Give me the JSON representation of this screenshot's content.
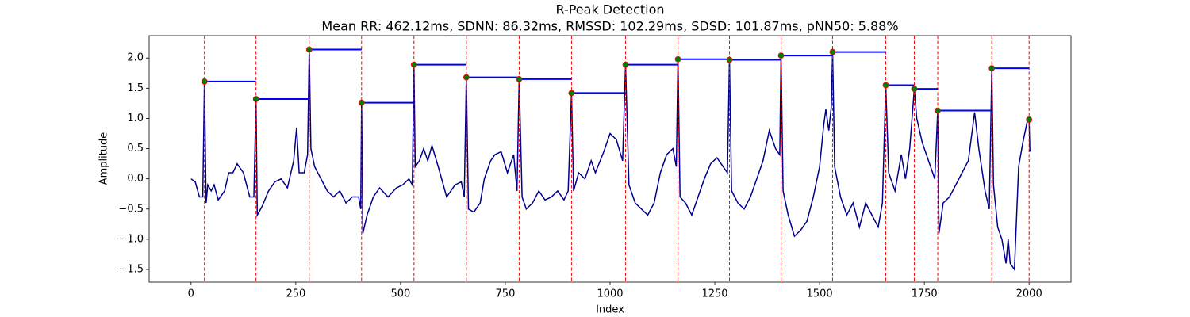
{
  "chart_data": {
    "type": "line",
    "title": "R-Peak Detection",
    "subtitle": "Mean RR: 462.12ms, SDNN: 86.32ms, RMSSD: 102.29ms, SDSD: 101.87ms, pNN50: 5.88%",
    "x_label": "Index",
    "y_label": "Amplitude",
    "xlim": [
      -100,
      2100
    ],
    "ylim": [
      -1.71,
      2.37
    ],
    "xticks": [
      0,
      250,
      500,
      750,
      1000,
      1250,
      1500,
      1750,
      2000
    ],
    "yticks": [
      {
        "value": -1.5,
        "label": "−1.5"
      },
      {
        "value": -1.0,
        "label": "−1.0"
      },
      {
        "value": -0.5,
        "label": "−0.5"
      },
      {
        "value": 0.0,
        "label": "0.0"
      },
      0.5,
      {
        "value": 1.0,
        "label": "1.0"
      },
      1.5,
      {
        "value": 2.0,
        "label": "2.0"
      }
    ],
    "signal_color": "#00008b",
    "peak_color": "#008000",
    "marker_edge_color": "#ff0000",
    "peak_line_color": "#ff0000",
    "rr_line_color": "#0000ff",
    "signal_x": [
      0,
      10,
      20,
      28,
      32,
      36,
      40,
      48,
      55,
      65,
      80,
      90,
      100,
      110,
      125,
      140,
      150,
      155,
      158,
      170,
      185,
      200,
      215,
      230,
      245,
      252,
      258,
      270,
      278,
      282,
      286,
      295,
      310,
      325,
      340,
      355,
      370,
      385,
      400,
      405,
      407,
      410,
      420,
      435,
      450,
      470,
      490,
      505,
      520,
      528,
      532,
      535,
      545,
      555,
      565,
      575,
      590,
      610,
      630,
      645,
      652,
      657,
      662,
      675,
      690,
      700,
      715,
      725,
      740,
      755,
      770,
      778,
      783,
      790,
      800,
      815,
      830,
      845,
      860,
      875,
      890,
      900,
      908,
      913,
      925,
      940,
      955,
      965,
      985,
      1000,
      1015,
      1030,
      1037,
      1045,
      1060,
      1075,
      1090,
      1105,
      1120,
      1135,
      1150,
      1158,
      1162,
      1167,
      1180,
      1195,
      1210,
      1225,
      1240,
      1255,
      1270,
      1280,
      1285,
      1290,
      1305,
      1320,
      1335,
      1350,
      1365,
      1380,
      1395,
      1405,
      1408,
      1413,
      1425,
      1440,
      1455,
      1470,
      1485,
      1500,
      1510,
      1515,
      1522,
      1528,
      1531,
      1536,
      1550,
      1565,
      1580,
      1595,
      1610,
      1625,
      1640,
      1650,
      1658,
      1665,
      1680,
      1695,
      1705,
      1715,
      1726,
      1732,
      1745,
      1760,
      1775,
      1782,
      1785,
      1795,
      1810,
      1825,
      1840,
      1855,
      1870,
      1880,
      1895,
      1905,
      1911,
      1915,
      1925,
      1935,
      1945,
      1950,
      1955,
      1965,
      1975,
      1985,
      1995,
      2000,
      2002
    ],
    "signal_y": [
      0.0,
      -0.05,
      -0.3,
      -0.3,
      1.61,
      -0.4,
      -0.1,
      -0.2,
      -0.1,
      -0.35,
      -0.2,
      0.1,
      0.1,
      0.25,
      0.1,
      -0.3,
      -0.3,
      1.32,
      -0.6,
      -0.45,
      -0.2,
      -0.05,
      0.0,
      -0.15,
      0.3,
      0.85,
      0.1,
      0.1,
      0.4,
      2.14,
      0.5,
      0.2,
      0.0,
      -0.2,
      -0.3,
      -0.2,
      -0.4,
      -0.3,
      -0.3,
      -0.5,
      1.26,
      -0.9,
      -0.6,
      -0.3,
      -0.15,
      -0.3,
      -0.15,
      -0.1,
      0.0,
      -0.1,
      1.89,
      0.2,
      0.3,
      0.5,
      0.3,
      0.55,
      0.2,
      -0.3,
      -0.1,
      -0.05,
      -0.3,
      1.68,
      -0.5,
      -0.55,
      -0.4,
      0.0,
      0.3,
      0.4,
      0.45,
      0.1,
      0.4,
      -0.2,
      1.65,
      -0.3,
      -0.5,
      -0.4,
      -0.2,
      -0.35,
      -0.3,
      -0.2,
      -0.35,
      -0.2,
      1.42,
      -0.2,
      0.1,
      0.0,
      0.3,
      0.1,
      0.45,
      0.75,
      0.65,
      0.3,
      1.89,
      -0.1,
      -0.4,
      -0.5,
      -0.6,
      -0.4,
      0.1,
      0.4,
      0.5,
      0.2,
      1.98,
      -0.3,
      -0.4,
      -0.6,
      -0.3,
      0.0,
      0.25,
      0.35,
      0.2,
      0.1,
      1.97,
      -0.2,
      -0.4,
      -0.5,
      -0.3,
      0.0,
      0.3,
      0.8,
      0.5,
      0.4,
      2.04,
      -0.2,
      -0.6,
      -0.95,
      -0.85,
      -0.7,
      -0.3,
      0.2,
      0.9,
      1.15,
      0.8,
      1.2,
      2.1,
      0.2,
      -0.3,
      -0.6,
      -0.4,
      -0.8,
      -0.4,
      -0.6,
      -0.8,
      -0.4,
      1.55,
      0.1,
      -0.2,
      0.4,
      0.0,
      0.5,
      1.49,
      1.0,
      0.6,
      0.3,
      0.0,
      1.13,
      -0.9,
      -0.4,
      -0.3,
      -0.1,
      0.1,
      0.3,
      1.1,
      0.5,
      -0.2,
      -0.5,
      1.83,
      -0.1,
      -0.8,
      -1.0,
      -1.4,
      -1.0,
      -1.4,
      -1.5,
      0.2,
      0.6,
      0.93,
      0.98,
      0.45
    ],
    "peaks_x": [
      32,
      155,
      282,
      407,
      532,
      657,
      783,
      908,
      1037,
      1162,
      1285,
      1408,
      1531,
      1658,
      1726,
      1782,
      1911,
      2000
    ],
    "peaks_y": [
      1.61,
      1.32,
      2.14,
      1.26,
      1.89,
      1.68,
      1.65,
      1.42,
      1.89,
      1.98,
      1.97,
      2.04,
      2.1,
      1.55,
      1.49,
      1.13,
      1.83,
      0.98
    ]
  }
}
